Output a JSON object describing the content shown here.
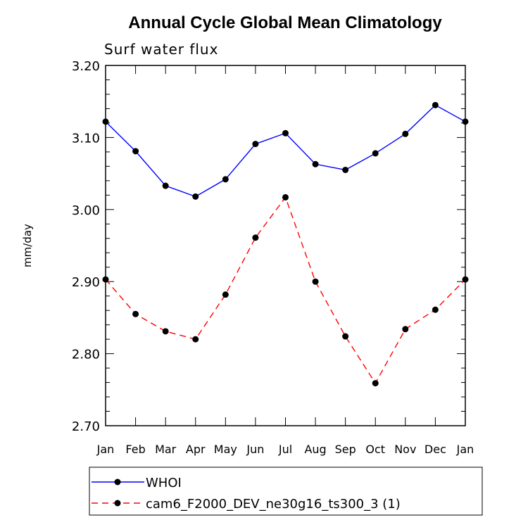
{
  "chart_data": {
    "type": "line",
    "title": "Annual Cycle Global Mean Climatology",
    "subtitle": "Surf water flux",
    "xlabel": "",
    "ylabel": "mm/day",
    "ylim": [
      2.7,
      3.2
    ],
    "yticks": [
      "2.70",
      "2.80",
      "2.90",
      "3.00",
      "3.10",
      "3.20"
    ],
    "ytick_values": [
      2.7,
      2.8,
      2.9,
      3.0,
      3.1,
      3.2
    ],
    "categories": [
      "Jan",
      "Feb",
      "Mar",
      "Apr",
      "May",
      "Jun",
      "Jul",
      "Aug",
      "Sep",
      "Oct",
      "Nov",
      "Dec",
      "Jan"
    ],
    "grid": false,
    "legend_position": "bottom",
    "series": [
      {
        "name": "WHOI",
        "color": "#0000ff",
        "line_style": "solid",
        "marker": "circle",
        "values": [
          3.122,
          3.081,
          3.033,
          3.018,
          3.042,
          3.091,
          3.106,
          3.063,
          3.055,
          3.078,
          3.105,
          3.145,
          3.122
        ]
      },
      {
        "name": "cam6_F2000_DEV_ne30g16_ts300_3 (1)",
        "color": "#ff0000",
        "line_style": "dashed",
        "marker": "circle",
        "values": [
          2.903,
          2.855,
          2.831,
          2.82,
          2.882,
          2.961,
          3.017,
          2.9,
          2.824,
          2.759,
          2.834,
          2.861,
          2.903
        ]
      }
    ]
  }
}
